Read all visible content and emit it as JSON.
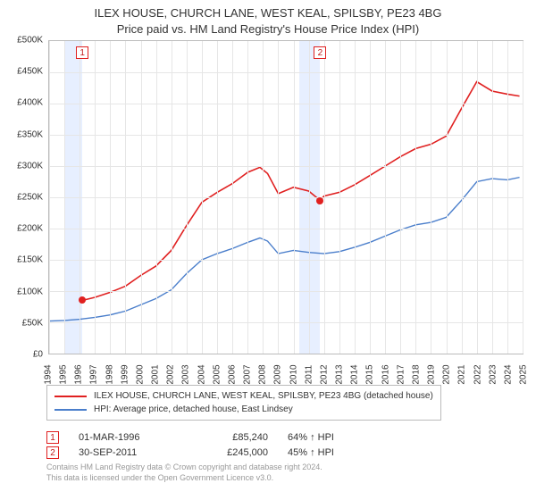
{
  "title": {
    "line1": "ILEX HOUSE, CHURCH LANE, WEST KEAL, SPILSBY, PE23 4BG",
    "line2": "Price paid vs. HM Land Registry's House Price Index (HPI)"
  },
  "chart": {
    "type": "line",
    "background_color": "#ffffff",
    "grid_color": "#e6e6e6",
    "axis_color": "#bbbbbb",
    "tick_fontsize": 10,
    "y": {
      "min": 0,
      "max": 500000,
      "step": 50000,
      "labels": [
        "£0",
        "£50K",
        "£100K",
        "£150K",
        "£200K",
        "£250K",
        "£300K",
        "£350K",
        "£400K",
        "£450K",
        "£500K"
      ]
    },
    "x": {
      "min": 1994,
      "max": 2025,
      "labels": [
        "1994",
        "1995",
        "1996",
        "1997",
        "1998",
        "1999",
        "2000",
        "2001",
        "2002",
        "2003",
        "2004",
        "2005",
        "2006",
        "2007",
        "2008",
        "2009",
        "2010",
        "2011",
        "2012",
        "2013",
        "2014",
        "2015",
        "2016",
        "2017",
        "2018",
        "2019",
        "2020",
        "2021",
        "2022",
        "2023",
        "2024",
        "2025"
      ]
    },
    "sale_band_color": "#e7efff",
    "series": [
      {
        "id": "hpi",
        "label": "HPI: Average price, detached house, East Lindsey",
        "color": "#4a7ecb",
        "width": 1.4,
        "points": [
          [
            1994,
            52
          ],
          [
            1995,
            53
          ],
          [
            1996,
            55
          ],
          [
            1997,
            58
          ],
          [
            1998,
            62
          ],
          [
            1999,
            68
          ],
          [
            2000,
            78
          ],
          [
            2001,
            88
          ],
          [
            2002,
            102
          ],
          [
            2003,
            128
          ],
          [
            2004,
            150
          ],
          [
            2005,
            160
          ],
          [
            2006,
            168
          ],
          [
            2007,
            178
          ],
          [
            2007.8,
            185
          ],
          [
            2008.3,
            180
          ],
          [
            2009,
            160
          ],
          [
            2010,
            165
          ],
          [
            2011,
            162
          ],
          [
            2012,
            160
          ],
          [
            2013,
            163
          ],
          [
            2014,
            170
          ],
          [
            2015,
            178
          ],
          [
            2016,
            188
          ],
          [
            2017,
            198
          ],
          [
            2018,
            206
          ],
          [
            2019,
            210
          ],
          [
            2020,
            218
          ],
          [
            2021,
            245
          ],
          [
            2022,
            275
          ],
          [
            2023,
            280
          ],
          [
            2024,
            278
          ],
          [
            2024.8,
            282
          ]
        ]
      },
      {
        "id": "property",
        "label": "ILEX HOUSE, CHURCH LANE, WEST KEAL, SPILSBY, PE23 4BG (detached house)",
        "color": "#e02020",
        "width": 1.6,
        "points": [
          [
            1996.17,
            85
          ],
          [
            1997,
            90
          ],
          [
            1998,
            98
          ],
          [
            1999,
            108
          ],
          [
            2000,
            125
          ],
          [
            2001,
            140
          ],
          [
            2002,
            165
          ],
          [
            2003,
            205
          ],
          [
            2004,
            242
          ],
          [
            2005,
            258
          ],
          [
            2006,
            272
          ],
          [
            2007,
            290
          ],
          [
            2007.8,
            298
          ],
          [
            2008.3,
            288
          ],
          [
            2009,
            256
          ],
          [
            2010,
            266
          ],
          [
            2011,
            260
          ],
          [
            2011.75,
            245
          ],
          [
            2012,
            252
          ],
          [
            2013,
            258
          ],
          [
            2014,
            270
          ],
          [
            2015,
            285
          ],
          [
            2016,
            300
          ],
          [
            2017,
            315
          ],
          [
            2018,
            328
          ],
          [
            2019,
            335
          ],
          [
            2020,
            348
          ],
          [
            2021,
            392
          ],
          [
            2022,
            435
          ],
          [
            2023,
            420
          ],
          [
            2024,
            415
          ],
          [
            2024.8,
            412
          ]
        ]
      }
    ],
    "sales": [
      {
        "n": 1,
        "year": 1996.17,
        "value": 85240,
        "band_lo": 1995,
        "band_hi": 1996.17
      },
      {
        "n": 2,
        "year": 2011.75,
        "value": 245000,
        "band_lo": 2010.4,
        "band_hi": 2011.75
      }
    ],
    "sale_dot_color": "#e02020"
  },
  "legend": {
    "rows": [
      {
        "color": "#e02020",
        "text": "ILEX HOUSE, CHURCH LANE, WEST KEAL, SPILSBY, PE23 4BG (detached house)"
      },
      {
        "color": "#4a7ecb",
        "text": "HPI: Average price, detached house, East Lindsey"
      }
    ]
  },
  "sales_table": {
    "rows": [
      {
        "n": "1",
        "date": "01-MAR-1996",
        "price": "£85,240",
        "pct": "64% ↑ HPI"
      },
      {
        "n": "2",
        "date": "30-SEP-2011",
        "price": "£245,000",
        "pct": "45% ↑ HPI"
      }
    ]
  },
  "footer": {
    "line1": "Contains HM Land Registry data © Crown copyright and database right 2024.",
    "line2": "This data is licensed under the Open Government Licence v3.0."
  }
}
